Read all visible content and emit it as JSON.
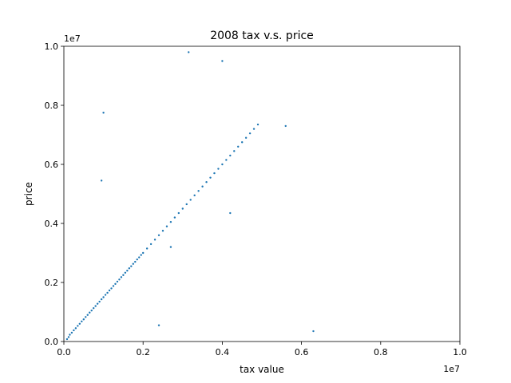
{
  "chart_data": {
    "type": "scatter",
    "title": "2008 tax v.s. price",
    "xlabel": "tax value",
    "ylabel": "price",
    "xlim": [
      0,
      10000000
    ],
    "ylim": [
      0,
      10000000
    ],
    "x_ticks": [
      0,
      2000000,
      4000000,
      6000000,
      8000000,
      10000000
    ],
    "y_ticks": [
      0,
      2000000,
      4000000,
      6000000,
      8000000,
      10000000
    ],
    "x_tick_labels": [
      "0.0",
      "0.2",
      "0.4",
      "0.6",
      "0.8",
      "1.0"
    ],
    "y_tick_labels": [
      "0.0",
      "0.2",
      "0.4",
      "0.6",
      "0.8",
      "1.0"
    ],
    "x_offset_text": "1e7",
    "y_offset_text": "1e7",
    "grid": false,
    "legend": "none",
    "marker_color": "#1f77b4",
    "marker_size": 1.2,
    "series": [
      {
        "x": [
          80000,
          120000,
          150000,
          200000,
          250000,
          300000,
          350000,
          400000,
          450000,
          500000,
          550000,
          600000,
          650000,
          700000,
          750000,
          800000,
          850000,
          900000,
          950000,
          1000000,
          1050000,
          1100000,
          1150000,
          1200000,
          1250000,
          1300000,
          1350000,
          1400000,
          1450000,
          1500000,
          1550000,
          1600000,
          1650000,
          1700000,
          1750000,
          1800000,
          1850000,
          1900000,
          1950000,
          2000000,
          2100000,
          2200000,
          2300000,
          2400000,
          2500000,
          2600000,
          2700000,
          2800000,
          2900000,
          3000000,
          3100000,
          3200000,
          3300000,
          3400000,
          3500000,
          3600000,
          3700000,
          3800000,
          3900000,
          4000000,
          4100000,
          4200000,
          4300000,
          4400000,
          4500000,
          4600000,
          4700000,
          4800000,
          4900000,
          1000000,
          950000,
          3150000,
          5600000,
          6300000,
          4200000,
          2400000,
          2700000,
          4000000
        ],
        "y": [
          80000,
          150000,
          230000,
          300000,
          380000,
          450000,
          530000,
          600000,
          680000,
          750000,
          830000,
          900000,
          980000,
          1050000,
          1130000,
          1200000,
          1280000,
          1350000,
          1430000,
          1500000,
          1580000,
          1650000,
          1730000,
          1800000,
          1880000,
          1950000,
          2030000,
          2100000,
          2180000,
          2250000,
          2330000,
          2400000,
          2480000,
          2550000,
          2630000,
          2700000,
          2780000,
          2850000,
          2930000,
          3000000,
          3150000,
          3300000,
          3450000,
          3600000,
          3750000,
          3900000,
          4050000,
          4200000,
          4350000,
          4500000,
          4650000,
          4800000,
          4950000,
          5100000,
          5250000,
          5400000,
          5550000,
          5700000,
          5850000,
          6000000,
          6150000,
          6300000,
          6450000,
          6600000,
          6750000,
          6900000,
          7050000,
          7200000,
          7350000,
          7750000,
          5450000,
          9800000,
          7300000,
          350000,
          4350000,
          550000,
          3200000,
          9500000
        ]
      }
    ]
  }
}
